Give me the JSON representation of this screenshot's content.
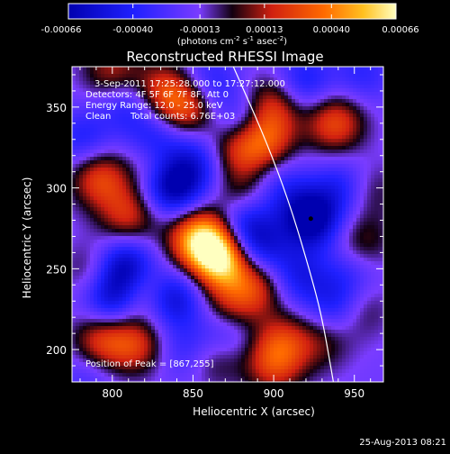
{
  "chart_data": {
    "type": "heatmap",
    "title": "Reconstructed RHESSI Image",
    "xlabel": "Heliocentric X (arcsec)",
    "ylabel": "Heliocentric Y (arcsec)",
    "xlim": [
      775,
      968
    ],
    "ylim": [
      180,
      375
    ],
    "x_ticks": [
      800,
      850,
      900,
      950
    ],
    "y_ticks": [
      200,
      250,
      300,
      350
    ],
    "colorbar": {
      "range": [
        -0.00066,
        0.00066
      ],
      "tick_values": [
        -0.00066,
        -0.0004,
        -0.00013,
        0.00013,
        0.0004,
        0.00066
      ],
      "tick_labels": [
        "-0.00066",
        "-0.00040",
        "-0.00013",
        "0.00013",
        "0.00040",
        "0.00066"
      ],
      "unit_prefix": "(photons cm",
      "unit_exp1": "-2",
      "unit_mid": " s",
      "unit_exp2": "-1",
      "unit_mid2": " asec",
      "unit_exp3": "-2",
      "unit_suffix": ")"
    },
    "annotations": {
      "time_range": "3-Sep-2011 17:25:28.000 to 17:27:12.000",
      "detectors": "Detectors: 4F 5F 6F 7F 8F, Att 0",
      "energy": "Energy Range: 12.0 - 25.0 keV",
      "clean": "Clean",
      "counts": "Total counts: 6.76E+03",
      "peak_label": "Position of Peak = [867,255]"
    },
    "peak": [
      867,
      255
    ],
    "min_marker": [
      923,
      281
    ],
    "sources": [
      {
        "x": 868,
        "y": 255,
        "v": 0.00066
      },
      {
        "x": 860,
        "y": 268,
        "v": 0.0005
      },
      {
        "x": 792,
        "y": 306,
        "v": 0.0004
      },
      {
        "x": 810,
        "y": 283,
        "v": 0.00035
      },
      {
        "x": 850,
        "y": 268,
        "v": 0.00032
      },
      {
        "x": 816,
        "y": 238,
        "v": 0.00035
      },
      {
        "x": 790,
        "y": 248,
        "v": 0.00025
      },
      {
        "x": 846,
        "y": 350,
        "v": 0.00042
      },
      {
        "x": 830,
        "y": 360,
        "v": 0.00035
      },
      {
        "x": 800,
        "y": 372,
        "v": 0.0003
      },
      {
        "x": 876,
        "y": 325,
        "v": 0.00035
      },
      {
        "x": 894,
        "y": 330,
        "v": 0.00045
      },
      {
        "x": 900,
        "y": 352,
        "v": 0.00035
      },
      {
        "x": 880,
        "y": 295,
        "v": 0.00025
      },
      {
        "x": 890,
        "y": 240,
        "v": 0.00036
      },
      {
        "x": 873,
        "y": 225,
        "v": 0.0003
      },
      {
        "x": 905,
        "y": 205,
        "v": 0.0003
      },
      {
        "x": 900,
        "y": 190,
        "v": 0.00032
      },
      {
        "x": 864,
        "y": 196,
        "v": 0.00025
      },
      {
        "x": 815,
        "y": 203,
        "v": 0.00035
      },
      {
        "x": 793,
        "y": 205,
        "v": 0.00038
      },
      {
        "x": 938,
        "y": 340,
        "v": 0.00042
      },
      {
        "x": 958,
        "y": 298,
        "v": 0.00022
      },
      {
        "x": 954,
        "y": 265,
        "v": 0.00025
      },
      {
        "x": 952,
        "y": 225,
        "v": 0.00025
      },
      {
        "x": 930,
        "y": 205,
        "v": 0.0002
      },
      {
        "x": 826,
        "y": 315,
        "v": 0.0002
      },
      {
        "x": 837,
        "y": 301,
        "v": -0.00055
      },
      {
        "x": 923,
        "y": 281,
        "v": -0.0006
      },
      {
        "x": 808,
        "y": 250,
        "v": -0.0006
      },
      {
        "x": 800,
        "y": 232,
        "v": -0.00045
      },
      {
        "x": 838,
        "y": 232,
        "v": -0.0004
      },
      {
        "x": 827,
        "y": 330,
        "v": -0.0003
      },
      {
        "x": 852,
        "y": 316,
        "v": -0.0003
      },
      {
        "x": 880,
        "y": 340,
        "v": -0.0003
      },
      {
        "x": 880,
        "y": 278,
        "v": -0.0004
      },
      {
        "x": 891,
        "y": 262,
        "v": -0.00035
      },
      {
        "x": 918,
        "y": 365,
        "v": -0.0003
      },
      {
        "x": 944,
        "y": 300,
        "v": -0.0003
      },
      {
        "x": 948,
        "y": 250,
        "v": -0.0002
      },
      {
        "x": 940,
        "y": 227,
        "v": -0.00035
      },
      {
        "x": 870,
        "y": 210,
        "v": -0.0003
      },
      {
        "x": 860,
        "y": 365,
        "v": -0.00025
      },
      {
        "x": 810,
        "y": 352,
        "v": -0.00025
      },
      {
        "x": 782,
        "y": 330,
        "v": -0.00025
      },
      {
        "x": 905,
        "y": 300,
        "v": -0.0002
      },
      {
        "x": 915,
        "y": 245,
        "v": -0.0003
      },
      {
        "x": 955,
        "y": 370,
        "v": -0.0002
      },
      {
        "x": 845,
        "y": 200,
        "v": -0.0002
      },
      {
        "x": 785,
        "y": 185,
        "v": -0.00015
      }
    ],
    "limb_curve": [
      [
        875,
        375
      ],
      [
        895,
        330
      ],
      [
        910,
        290
      ],
      [
        922,
        250
      ],
      [
        930,
        220
      ],
      [
        937,
        180
      ]
    ]
  },
  "timestamp": "25-Aug-2013 08:21"
}
